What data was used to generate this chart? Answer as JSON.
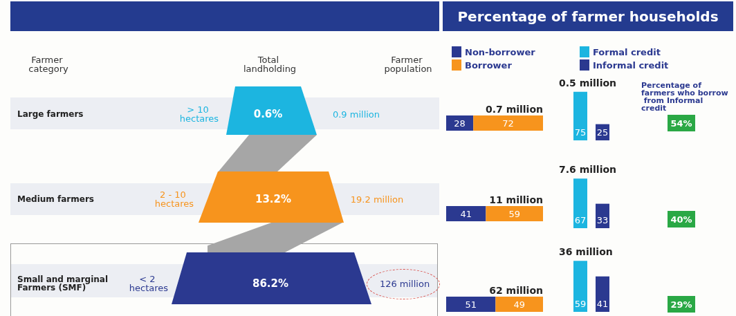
{
  "chart_data": [
    {
      "type": "other",
      "categories": [
        "Large farmers",
        "Medium farmers",
        "Small and marginal Farmers (SMF)"
      ],
      "value_labels": [
        "0.6%",
        "13.2%",
        "86.2%"
      ],
      "colors": [
        "#1cb5e0",
        "#f7941d",
        "#2b3990"
      ],
      "annotations": [
        "Farmer category",
        "Total landholding",
        "Farmer population",
        "> 10 hectares",
        "0.9 million",
        "2 - 10 hectares",
        "19.2 million",
        "< 2 hectares",
        "126 million"
      ]
    },
    {
      "type": "bar",
      "title": "Percentage of farmer households",
      "orientation": "horizontal",
      "stacked": true,
      "categories": [
        null,
        null,
        null
      ],
      "series": [
        {
          "name": "Non-borrower",
          "color": "#2b3990",
          "values": [
            28,
            41,
            51
          ]
        },
        {
          "name": "Borrower",
          "color": "#f7941d",
          "values": [
            72,
            59,
            49
          ]
        }
      ],
      "data_labels": true,
      "legend": "top left",
      "annotations": [
        "0.7 million",
        "11 million",
        "62 million"
      ]
    },
    {
      "type": "bar",
      "categories": [
        null
      ],
      "series": [
        {
          "name": "Formal credit",
          "color": "#1cb5e0",
          "values": [
            75
          ]
        },
        {
          "name": "Informal credit",
          "color": "#2b3990",
          "values": [
            25
          ]
        }
      ],
      "data_labels": true,
      "legend": "top right",
      "annotations": [
        "0.5 million"
      ]
    },
    {
      "type": "bar",
      "categories": [
        null
      ],
      "series": [
        {
          "color": "#1cb5e0",
          "values": [
            67
          ]
        },
        {
          "color": "#2b3990",
          "values": [
            33
          ]
        }
      ],
      "data_labels": true,
      "annotations": [
        "7.6 million"
      ]
    },
    {
      "type": "bar",
      "categories": [
        null
      ],
      "series": [
        {
          "color": "#1cb5e0",
          "values": [
            59
          ]
        },
        {
          "color": "#2b3990",
          "values": [
            41
          ]
        }
      ],
      "data_labels": true,
      "annotations": [
        "36 million"
      ]
    },
    {
      "type": "other",
      "title": "Percentage of farmers who borrow from Informal credit",
      "value_labels": [
        "54%",
        "40%",
        "29%"
      ],
      "color": "#2aa845"
    }
  ]
}
